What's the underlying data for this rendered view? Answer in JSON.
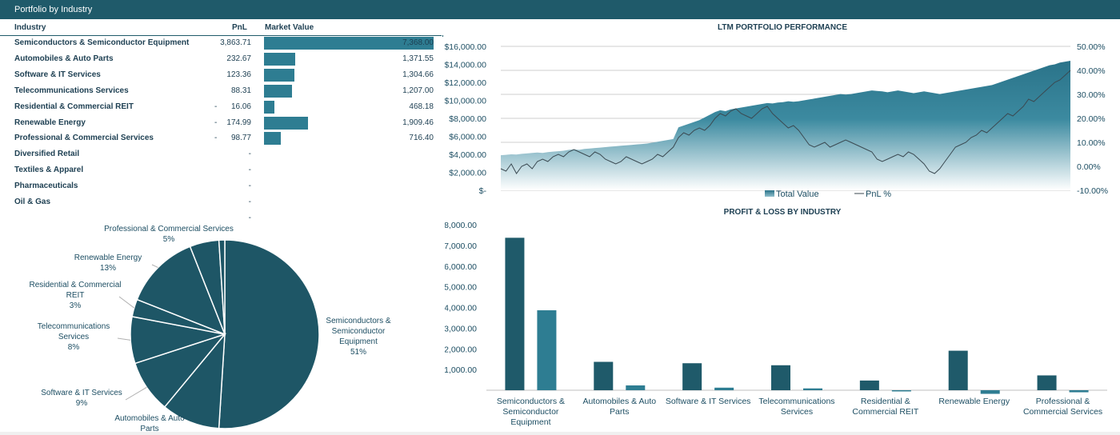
{
  "header": {
    "title": "Portfolio by Industry"
  },
  "table": {
    "columns": [
      "Industry",
      "PnL",
      "Market Value"
    ],
    "rows": [
      {
        "industry": "Semiconductors & Semiconductor Equipment",
        "neg": "",
        "pnl": "3,863.71",
        "mv": "7,368.00",
        "mv_value": 7368.0
      },
      {
        "industry": "Automobiles & Auto Parts",
        "neg": "",
        "pnl": "232.67",
        "mv": "1,371.55",
        "mv_value": 1371.55
      },
      {
        "industry": "Software & IT Services",
        "neg": "",
        "pnl": "123.36",
        "mv": "1,304.66",
        "mv_value": 1304.66
      },
      {
        "industry": "Telecommunications Services",
        "neg": "",
        "pnl": "88.31",
        "mv": "1,207.00",
        "mv_value": 1207.0
      },
      {
        "industry": "Residential & Commercial REIT",
        "neg": "-",
        "pnl": "16.06",
        "mv": "468.18",
        "mv_value": 468.18
      },
      {
        "industry": "Renewable Energy",
        "neg": "-",
        "pnl": "174.99",
        "mv": "1,909.46",
        "mv_value": 1909.46
      },
      {
        "industry": "Professional & Commercial Services",
        "neg": "-",
        "pnl": "98.77",
        "mv": "716.40",
        "mv_value": 716.4
      },
      {
        "industry": "Diversified Retail",
        "neg": "",
        "pnl": "-",
        "mv": "",
        "mv_value": 0
      },
      {
        "industry": "Textiles & Apparel",
        "neg": "",
        "pnl": "-",
        "mv": "",
        "mv_value": 0
      },
      {
        "industry": "Pharmaceuticals",
        "neg": "",
        "pnl": "-",
        "mv": "",
        "mv_value": 0
      },
      {
        "industry": "Oil & Gas",
        "neg": "",
        "pnl": "-",
        "mv": "",
        "mv_value": 0
      },
      {
        "industry": "",
        "neg": "",
        "pnl": "-",
        "mv": "",
        "mv_value": 0
      }
    ]
  },
  "colors": {
    "dark": "#1f5a6a",
    "mid": "#2e7d92",
    "pie": "#1e5666"
  },
  "chart_data": [
    {
      "type": "pie",
      "slices": [
        {
          "label": "Semiconductors & Semiconductor Equipment",
          "value": 51,
          "display": "51%"
        },
        {
          "label": "Automobiles & Auto Parts",
          "value": 10,
          "display": ""
        },
        {
          "label": "Software & IT Services",
          "value": 9,
          "display": "9%"
        },
        {
          "label": "Telecommunications Services",
          "value": 8,
          "display": "8%"
        },
        {
          "label": "Residential & Commercial REIT",
          "value": 3,
          "display": "3%"
        },
        {
          "label": "Renewable Energy",
          "value": 13,
          "display": "13%"
        },
        {
          "label": "Professional & Commercial Services",
          "value": 5,
          "display": "5%"
        },
        {
          "label": "",
          "value": 1,
          "display": ""
        }
      ]
    },
    {
      "type": "area",
      "title": "LTM PORTFOLIO PERFORMANCE",
      "yticks_left": [
        "$16,000.00",
        "$14,000.00",
        "$12,000.00",
        "$10,000.00",
        "$8,000.00",
        "$6,000.00",
        "$4,000.00",
        "$2,000.00",
        "$-"
      ],
      "yticks_right": [
        "50.00%",
        "40.00%",
        "30.00%",
        "20.00%",
        "10.00%",
        "0.00%",
        "-10.00%"
      ],
      "ylim_left": [
        0,
        16000
      ],
      "ylim_right": [
        -0.1,
        0.5
      ],
      "legend": [
        "Total Value",
        "PnL %"
      ],
      "legend_position": "bottom",
      "series": [
        {
          "name": "Total Value",
          "values": [
            3900,
            3950,
            4000,
            3980,
            4050,
            4100,
            4150,
            4200,
            4150,
            4250,
            4300,
            4350,
            4400,
            4500,
            4550,
            4500,
            4600,
            4650,
            4700,
            4750,
            4800,
            4850,
            4900,
            4950,
            5000,
            5050,
            5100,
            5150,
            5200,
            5300,
            5400,
            5500,
            5600,
            5700,
            7000,
            7200,
            7400,
            7600,
            7800,
            8100,
            8400,
            8700,
            8900,
            8800,
            9000,
            9100,
            9200,
            9300,
            9400,
            9500,
            9600,
            9700,
            9650,
            9750,
            9800,
            9900,
            9850,
            9900,
            10000,
            10100,
            10200,
            10300,
            10400,
            10500,
            10600,
            10700,
            10650,
            10700,
            10800,
            10900,
            11000,
            11100,
            11050,
            11000,
            10900,
            11000,
            11100,
            11000,
            10900,
            10800,
            10900,
            11000,
            10900,
            10800,
            10700,
            10800,
            10900,
            11000,
            11100,
            11200,
            11300,
            11400,
            11500,
            11600,
            11700,
            11900,
            12100,
            12300,
            12500,
            12700,
            12900,
            13100,
            13300,
            13500,
            13700,
            13900,
            14000,
            14200,
            14300,
            14400
          ]
        },
        {
          "name": "PnL %",
          "values": [
            -0.01,
            -0.02,
            0.01,
            -0.03,
            0.0,
            0.01,
            -0.01,
            0.02,
            0.03,
            0.02,
            0.04,
            0.05,
            0.04,
            0.06,
            0.07,
            0.06,
            0.05,
            0.04,
            0.06,
            0.05,
            0.03,
            0.02,
            0.01,
            0.02,
            0.04,
            0.03,
            0.02,
            0.01,
            0.02,
            0.03,
            0.05,
            0.04,
            0.06,
            0.08,
            0.12,
            0.14,
            0.13,
            0.15,
            0.16,
            0.15,
            0.17,
            0.2,
            0.22,
            0.21,
            0.23,
            0.24,
            0.22,
            0.21,
            0.2,
            0.22,
            0.24,
            0.25,
            0.22,
            0.2,
            0.18,
            0.16,
            0.17,
            0.15,
            0.12,
            0.09,
            0.08,
            0.09,
            0.1,
            0.08,
            0.09,
            0.1,
            0.11,
            0.1,
            0.09,
            0.08,
            0.07,
            0.06,
            0.03,
            0.02,
            0.03,
            0.04,
            0.05,
            0.04,
            0.06,
            0.05,
            0.03,
            0.01,
            -0.02,
            -0.03,
            -0.01,
            0.02,
            0.05,
            0.08,
            0.09,
            0.1,
            0.12,
            0.13,
            0.15,
            0.14,
            0.16,
            0.18,
            0.2,
            0.22,
            0.21,
            0.23,
            0.25,
            0.28,
            0.27,
            0.29,
            0.31,
            0.33,
            0.35,
            0.36,
            0.38,
            0.4
          ]
        }
      ]
    },
    {
      "type": "bar",
      "title": "PROFIT & LOSS BY INDUSTRY",
      "categories": [
        "Semiconductors & Semiconductor Equipment",
        "Automobiles & Auto Parts",
        "Software & IT Services",
        "Telecommunications Services",
        "Residential & Commercial REIT",
        "Renewable Energy",
        "Professional & Commercial Services"
      ],
      "category_lines": [
        [
          "Semiconductors &",
          "Semiconductor",
          "Equipment"
        ],
        [
          "Automobiles & Auto",
          "Parts"
        ],
        [
          "Software & IT Services"
        ],
        [
          "Telecommunications",
          "Services"
        ],
        [
          "Residential &",
          "Commercial REIT"
        ],
        [
          "Renewable Energy"
        ],
        [
          "Professional &",
          "Commercial Services"
        ]
      ],
      "yticks": [
        "8,000.00",
        "7,000.00",
        "6,000.00",
        "5,000.00",
        "4,000.00",
        "3,000.00",
        "2,000.00",
        "1,000.00"
      ],
      "ylim": [
        0,
        8000
      ],
      "series": [
        {
          "values": [
            7368.0,
            1371.55,
            1304.66,
            1207.0,
            468.18,
            1909.46,
            716.4
          ]
        },
        {
          "values": [
            3863.71,
            232.67,
            123.36,
            88.31,
            -16.06,
            -174.99,
            -98.77
          ]
        }
      ]
    }
  ]
}
